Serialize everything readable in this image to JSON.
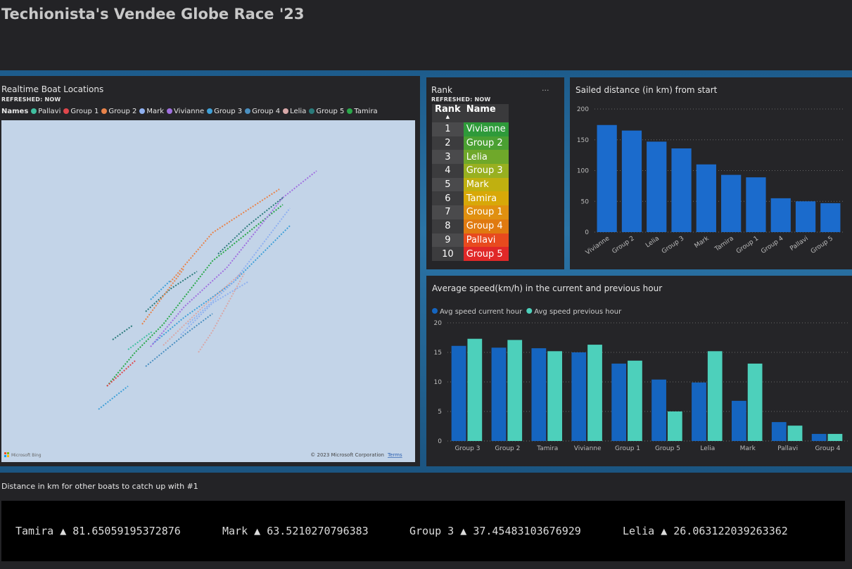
{
  "header": {
    "title": "Techionista's Vendee Globe Race '23"
  },
  "map": {
    "title": "Realtime Boat Locations",
    "subtitle": "REFRESHED: NOW",
    "legend_title": "Names",
    "legend": [
      {
        "name": "Pallavi",
        "color": "#3fbf9f"
      },
      {
        "name": "Group 1",
        "color": "#e0474c"
      },
      {
        "name": "Group 2",
        "color": "#e8834a"
      },
      {
        "name": "Mark",
        "color": "#8fb0f0"
      },
      {
        "name": "Vivianne",
        "color": "#a070e0"
      },
      {
        "name": "Group 3",
        "color": "#3fa0d8"
      },
      {
        "name": "Group 4",
        "color": "#4a8fc0"
      },
      {
        "name": "Lelia",
        "color": "#d8a8a8"
      },
      {
        "name": "Group 5",
        "color": "#2a7a7a"
      },
      {
        "name": "Tamira",
        "color": "#2aa84a"
      }
    ],
    "logo": "Microsoft Bing",
    "attribution": "© 2023 Microsoft Corporation",
    "terms": "Terms"
  },
  "rank": {
    "title": "Rank",
    "subtitle": "REFRESHED: NOW",
    "columns": [
      "Rank",
      "Name"
    ],
    "rows": [
      [
        1,
        "Vivianne"
      ],
      [
        2,
        "Group 2"
      ],
      [
        3,
        "Lelia"
      ],
      [
        4,
        "Group 3"
      ],
      [
        5,
        "Mark"
      ],
      [
        6,
        "Tamira"
      ],
      [
        7,
        "Group 1"
      ],
      [
        8,
        "Group 4"
      ],
      [
        9,
        "Pallavi"
      ],
      [
        10,
        "Group 5"
      ]
    ],
    "row_colors": [
      "#2e9a3a",
      "#4aa032",
      "#6fa82a",
      "#98b020",
      "#c0b010",
      "#d8a808",
      "#e09010",
      "#e07a10",
      "#e84a1e",
      "#e02828"
    ]
  },
  "chart_data": [
    {
      "type": "bar",
      "title": "Sailed distance (in km) from start",
      "categories": [
        "Vivianne",
        "Group 2",
        "Lelia",
        "Group 3",
        "Mark",
        "Tamira",
        "Group 1",
        "Group 4",
        "Pallavi",
        "Group 5"
      ],
      "values": [
        174,
        165,
        147,
        136,
        110,
        93,
        89,
        55,
        50,
        47
      ],
      "color": "#1b6bcc",
      "ylim": [
        0,
        200
      ],
      "yticks": [
        0,
        50,
        100,
        150,
        200
      ],
      "grid": true
    },
    {
      "type": "bar",
      "title": "Average speed(km/h) in the current and previous hour",
      "categories": [
        "Group 3",
        "Group 2",
        "Tamira",
        "Vivianne",
        "Group 1",
        "Group 5",
        "Lelia",
        "Mark",
        "Pallavi",
        "Group 4"
      ],
      "series": [
        {
          "name": "Avg speed current hour",
          "color": "#1565c0",
          "values": [
            16.1,
            15.8,
            15.7,
            15.0,
            13.1,
            10.4,
            9.9,
            6.8,
            3.2,
            1.2
          ]
        },
        {
          "name": "Avg speed previous hour",
          "color": "#4dd0bb",
          "values": [
            17.3,
            17.1,
            15.2,
            16.3,
            13.6,
            5.0,
            15.2,
            13.1,
            2.6,
            1.2
          ]
        }
      ],
      "ylim": [
        0,
        20
      ],
      "yticks": [
        0,
        5,
        10,
        15,
        20
      ],
      "grid": true
    }
  ],
  "ticker": {
    "title": "Distance in km for other boats to catch up with #1",
    "items": [
      {
        "name": "Tamira",
        "arrow": "▲",
        "value": "81.65059195372876"
      },
      {
        "name": "Mark",
        "arrow": "▲",
        "value": "63.5210270796383"
      },
      {
        "name": "Group 3",
        "arrow": "▲",
        "value": "37.45483103676929"
      },
      {
        "name": "Lelia",
        "arrow": "▲",
        "value": "26.063122039263362"
      }
    ]
  }
}
